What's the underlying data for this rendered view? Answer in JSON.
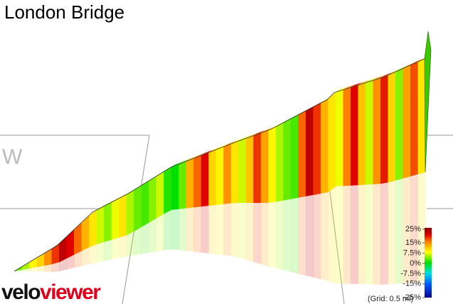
{
  "title": "London Bridge",
  "profile": {
    "gradients": [
      3,
      5,
      8,
      10,
      14,
      18,
      22,
      20,
      16,
      12,
      9,
      6,
      4,
      7,
      9,
      5,
      3,
      2,
      4,
      6,
      1,
      0,
      3,
      12,
      16,
      20,
      10,
      8,
      14,
      9,
      6,
      11,
      18,
      13,
      8,
      5,
      3,
      2,
      16,
      22,
      18,
      12,
      9,
      7,
      15,
      20,
      11,
      6,
      14,
      19,
      10,
      4,
      13,
      17,
      9
    ]
  },
  "legend": {
    "ticks": [
      {
        "value": 25,
        "label": "25%"
      },
      {
        "value": 15,
        "label": "15%"
      },
      {
        "value": 7.5,
        "label": "7.5%"
      },
      {
        "value": 0,
        "label": "0%"
      },
      {
        "value": -7.5,
        "label": "-7.5%"
      },
      {
        "value": -15,
        "label": "-15%"
      },
      {
        "value": -25,
        "label": "-25%"
      }
    ]
  },
  "grid_note": "(Grid: 0.5 mi)",
  "logo": {
    "part1": "velo",
    "part2": "viewer"
  }
}
